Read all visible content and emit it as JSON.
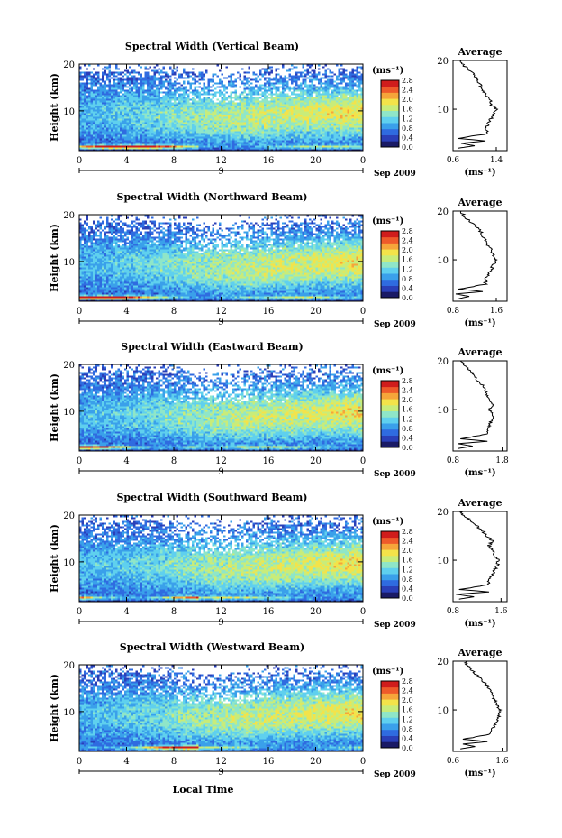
{
  "figure": {
    "xlabel": "Local Time",
    "colorbar_unit": "(ms⁻¹)",
    "colorbar_ticks": [
      "0.0",
      "0.4",
      "0.8",
      "1.2",
      "1.6",
      "2.0",
      "2.4",
      "2.8"
    ],
    "colormap": [
      "#1a1a66",
      "#2a3fb8",
      "#2f6be0",
      "#3aa0ea",
      "#5fd0ee",
      "#8fe6c8",
      "#c8ec7a",
      "#f3e34a",
      "#f6a53a",
      "#ee5a2a",
      "#d01c1c"
    ],
    "date_day": "9",
    "date_label": "Sep 2009",
    "avg_title": "Average",
    "avg_unit": "(ms⁻¹)"
  },
  "chart_data": [
    {
      "type": "heatmap",
      "title": "Spectral Width (Vertical Beam)",
      "xlabel": "Local Time",
      "ylabel": "Height (km)",
      "x_ticks": [
        "0",
        "4",
        "8",
        "12",
        "16",
        "20",
        "0"
      ],
      "xlim": [
        0,
        24
      ],
      "y_ticks": [
        "10",
        "20"
      ],
      "ylim": [
        1.5,
        20
      ],
      "colorbar": {
        "label": "(ms⁻¹)",
        "range": [
          0.0,
          2.8
        ],
        "ticks": [
          "0.0",
          "0.4",
          "0.8",
          "1.2",
          "1.6",
          "2.0",
          "2.4",
          "2.8"
        ]
      },
      "average_profile": {
        "title": "Average",
        "xlabel": "(ms⁻¹)",
        "x_ticks": [
          "0.6",
          "1.4"
        ],
        "xlim": [
          0.6,
          1.6
        ],
        "y_ticks": [
          "10",
          "20"
        ],
        "height_km": [
          2,
          2.5,
          3,
          3.5,
          4,
          5,
          6,
          7,
          8,
          9,
          10,
          11,
          12,
          13,
          14,
          15,
          16,
          17,
          18,
          19,
          20
        ],
        "values": [
          0.7,
          1.0,
          0.75,
          1.2,
          0.7,
          1.25,
          1.2,
          1.25,
          1.3,
          1.35,
          1.4,
          1.3,
          1.3,
          1.2,
          1.15,
          1.1,
          1.05,
          1.0,
          0.9,
          0.8,
          0.75
        ]
      }
    },
    {
      "type": "heatmap",
      "title": "Spectral Width (Northward Beam)",
      "xlabel": "Local Time",
      "ylabel": "Height (km)",
      "x_ticks": [
        "0",
        "4",
        "8",
        "12",
        "16",
        "20",
        "0"
      ],
      "xlim": [
        0,
        24
      ],
      "y_ticks": [
        "10",
        "20"
      ],
      "ylim": [
        1.5,
        20
      ],
      "colorbar": {
        "label": "(ms⁻¹)",
        "range": [
          0.0,
          2.8
        ],
        "ticks": [
          "0.0",
          "0.4",
          "0.8",
          "1.2",
          "1.6",
          "2.0",
          "2.4",
          "2.8"
        ]
      },
      "average_profile": {
        "title": "Average",
        "xlabel": "(ms⁻¹)",
        "x_ticks": [
          "0.8",
          "1.6"
        ],
        "xlim": [
          0.8,
          1.8
        ],
        "y_ticks": [
          "10",
          "20"
        ],
        "height_km": [
          2,
          2.5,
          3,
          3.5,
          4,
          5,
          6,
          7,
          8,
          9,
          10,
          11,
          12,
          13,
          14,
          15,
          16,
          17,
          18,
          19,
          20
        ],
        "values": [
          0.9,
          1.1,
          0.85,
          1.35,
          0.9,
          1.4,
          1.4,
          1.45,
          1.5,
          1.55,
          1.6,
          1.55,
          1.5,
          1.45,
          1.4,
          1.35,
          1.3,
          1.2,
          1.1,
          1.0,
          0.95
        ]
      }
    },
    {
      "type": "heatmap",
      "title": "Spectral Width (Eastward Beam)",
      "xlabel": "Local Time",
      "ylabel": "Height (km)",
      "x_ticks": [
        "0",
        "4",
        "8",
        "12",
        "16",
        "20",
        "0"
      ],
      "xlim": [
        0,
        24
      ],
      "y_ticks": [
        "10",
        "20"
      ],
      "ylim": [
        1.5,
        20
      ],
      "colorbar": {
        "label": "(ms⁻¹)",
        "range": [
          0.0,
          2.8
        ],
        "ticks": [
          "0.0",
          "0.4",
          "0.8",
          "1.2",
          "1.6",
          "2.0",
          "2.4",
          "2.8"
        ]
      },
      "average_profile": {
        "title": "Average",
        "xlabel": "(ms⁻¹)",
        "x_ticks": [
          "0.8",
          "1.8"
        ],
        "xlim": [
          0.8,
          1.9
        ],
        "y_ticks": [
          "10",
          "20"
        ],
        "height_km": [
          2,
          2.5,
          3,
          3.5,
          4,
          5,
          6,
          7,
          8,
          9,
          10,
          11,
          12,
          13,
          14,
          15,
          16,
          17,
          18,
          19,
          20
        ],
        "values": [
          0.9,
          1.2,
          0.9,
          1.5,
          0.95,
          1.5,
          1.5,
          1.55,
          1.6,
          1.6,
          1.55,
          1.6,
          1.55,
          1.5,
          1.45,
          1.4,
          1.3,
          1.25,
          1.15,
          1.05,
          0.95
        ]
      }
    },
    {
      "type": "heatmap",
      "title": "Spectral Width (Southward Beam)",
      "xlabel": "Local Time",
      "ylabel": "Height (km)",
      "x_ticks": [
        "0",
        "4",
        "8",
        "12",
        "16",
        "20",
        "0"
      ],
      "xlim": [
        0,
        24
      ],
      "y_ticks": [
        "10",
        "20"
      ],
      "ylim": [
        1.5,
        20
      ],
      "colorbar": {
        "label": "(ms⁻¹)",
        "range": [
          0.0,
          2.8
        ],
        "ticks": [
          "0.0",
          "0.4",
          "0.8",
          "1.2",
          "1.6",
          "2.0",
          "2.4",
          "2.8"
        ]
      },
      "average_profile": {
        "title": "Average",
        "xlabel": "(ms⁻¹)",
        "x_ticks": [
          "0.8",
          "1.6"
        ],
        "xlim": [
          0.8,
          1.7
        ],
        "y_ticks": [
          "10",
          "20"
        ],
        "height_km": [
          2,
          2.5,
          3,
          3.5,
          4,
          5,
          6,
          7,
          8,
          9,
          10,
          11,
          12,
          13,
          14,
          15,
          16,
          17,
          18,
          19,
          20
        ],
        "values": [
          0.9,
          1.15,
          0.85,
          1.4,
          0.9,
          1.4,
          1.4,
          1.45,
          1.5,
          1.55,
          1.55,
          1.5,
          1.45,
          1.4,
          1.45,
          1.35,
          1.3,
          1.2,
          1.1,
          1.0,
          0.9
        ]
      }
    },
    {
      "type": "heatmap",
      "title": "Spectral Width (Westward Beam)",
      "xlabel": "Local Time",
      "ylabel": "Height (km)",
      "x_ticks": [
        "0",
        "4",
        "8",
        "12",
        "16",
        "20",
        "0"
      ],
      "xlim": [
        0,
        24
      ],
      "y_ticks": [
        "10",
        "20"
      ],
      "ylim": [
        1.5,
        20
      ],
      "colorbar": {
        "label": "(ms⁻¹)",
        "range": [
          0.0,
          2.8
        ],
        "ticks": [
          "0.0",
          "0.4",
          "0.8",
          "1.2",
          "1.6",
          "2.0",
          "2.4",
          "2.8"
        ]
      },
      "average_profile": {
        "title": "Average",
        "xlabel": "(ms⁻¹)",
        "x_ticks": [
          "0.6",
          "1.6"
        ],
        "xlim": [
          0.6,
          1.7
        ],
        "y_ticks": [
          "10",
          "20"
        ],
        "height_km": [
          2,
          2.5,
          3,
          3.5,
          4,
          5,
          6,
          7,
          8,
          9,
          10,
          11,
          12,
          13,
          14,
          15,
          16,
          17,
          18,
          19,
          20
        ],
        "values": [
          0.75,
          1.05,
          0.8,
          1.3,
          0.8,
          1.35,
          1.4,
          1.45,
          1.5,
          1.55,
          1.55,
          1.5,
          1.45,
          1.4,
          1.35,
          1.3,
          1.2,
          1.1,
          1.0,
          0.9,
          0.85
        ]
      }
    }
  ]
}
